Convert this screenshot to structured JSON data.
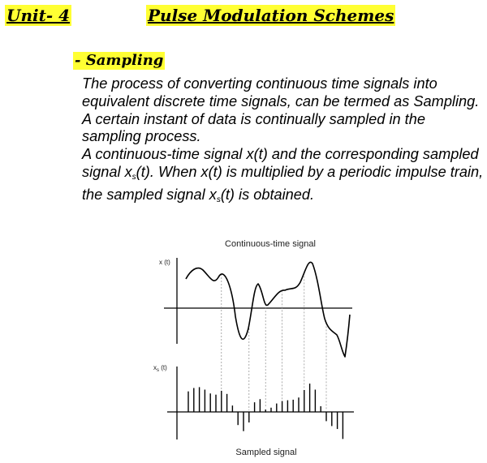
{
  "header": {
    "unit": "Unit- 4",
    "title": "Pulse Modulation Schemes"
  },
  "section": {
    "heading": "- Sampling",
    "para1": "The process of converting continuous time signals into equivalent discrete time signals, can be termed as Sampling. A certain instant of data is continually sampled in the sampling process.",
    "para2": {
      "a": "A continuous-time signal x(t) and the corresponding sampled signal x",
      "sub1": "s",
      "b": "(t). When x(t) is multiplied by a periodic impulse train, the sampled signal x",
      "sub2": "s",
      "c": "(t) is obtained."
    }
  },
  "figure": {
    "top_caption": "Continuous-time signal",
    "top_axis_label": "x (t)",
    "bottom_axis_label_main": "x",
    "bottom_axis_label_sub": "s",
    "bottom_axis_label_tail": " (t)",
    "bottom_caption": "Sampled signal"
  }
}
